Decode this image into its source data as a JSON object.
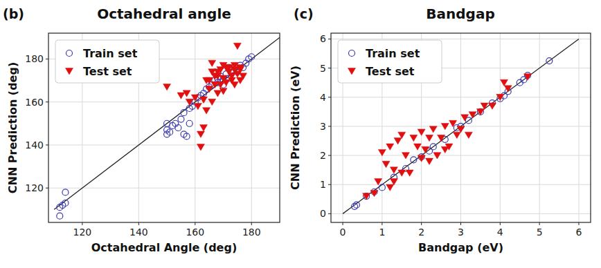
{
  "chart_data": [
    {
      "type": "scatter",
      "title": "Octahedral angle",
      "annotations": [
        "(b)"
      ],
      "x_label": "Octahedral Angle (deg)",
      "y_label": "CNN Prediction (deg)",
      "xlim": [
        108,
        190
      ],
      "ylim": [
        104,
        192
      ],
      "xticks": [
        120,
        140,
        160,
        180
      ],
      "yticks": [
        120,
        140,
        160,
        180
      ],
      "grid": true,
      "legend": "upper left",
      "diagonal": [
        110,
        190
      ],
      "series": [
        {
          "name": "Train set",
          "color": "#3b3bb0",
          "marker": "circle",
          "x": [
            112,
            112,
            113,
            114,
            114,
            150,
            150,
            150,
            151,
            152,
            153,
            154,
            155,
            156,
            156,
            157,
            158,
            158,
            159,
            160,
            161,
            162,
            163,
            164,
            165,
            166,
            167,
            168,
            169,
            170,
            171,
            172,
            173,
            174,
            175,
            176,
            177,
            178,
            179,
            180,
            170,
            168,
            172
          ],
          "values": [
            107,
            111,
            112,
            113,
            118,
            145,
            147,
            150,
            146,
            149,
            150,
            148,
            152,
            145,
            155,
            144,
            150,
            157,
            158,
            160,
            162,
            163,
            164,
            166,
            167,
            168,
            170,
            169,
            172,
            170,
            173,
            171,
            175,
            176,
            174,
            177,
            176,
            178,
            180,
            181,
            168,
            171,
            176
          ]
        },
        {
          "name": "Test set",
          "color": "#e01010",
          "marker": "triangle_down",
          "x": [
            150,
            155,
            157,
            158,
            160,
            161,
            162,
            162,
            163,
            164,
            165,
            166,
            167,
            168,
            168,
            169,
            170,
            170,
            171,
            172,
            172,
            173,
            173,
            174,
            174,
            175,
            175,
            176,
            176,
            177,
            165,
            166,
            167,
            169,
            171,
            168,
            164,
            163,
            170,
            174,
            176,
            166
          ],
          "values": [
            167,
            163,
            164,
            160,
            162,
            158,
            145,
            139,
            148,
            156,
            166,
            174,
            168,
            164,
            172,
            175,
            165,
            171,
            169,
            176,
            174,
            170,
            172,
            175,
            177,
            186,
            173,
            176,
            170,
            172,
            170,
            160,
            172,
            168,
            176,
            174,
            170,
            161,
            177,
            168,
            175,
            178
          ]
        }
      ]
    },
    {
      "type": "scatter",
      "title": "Bandgap",
      "annotations": [
        "(c)"
      ],
      "x_label": "Bandgap (eV)",
      "y_label": "CNN Prediction (eV)",
      "xlim": [
        -0.3,
        6.3
      ],
      "ylim": [
        -0.3,
        6.2
      ],
      "xticks": [
        0,
        1,
        2,
        3,
        4,
        5,
        6
      ],
      "yticks": [
        0,
        1,
        2,
        3,
        4,
        5,
        6
      ],
      "grid": true,
      "legend": "upper left",
      "diagonal": [
        0,
        6
      ],
      "series": [
        {
          "name": "Train set",
          "color": "#3b3bb0",
          "marker": "circle",
          "x": [
            0.3,
            0.35,
            0.6,
            0.8,
            1.0,
            1.3,
            1.6,
            2.0,
            2.3,
            2.6,
            2.9,
            3.2,
            3.5,
            3.8,
            4.0,
            4.1,
            4.2,
            4.5,
            4.6,
            4.7,
            5.25,
            1.8,
            2.2,
            3.0
          ],
          "values": [
            0.25,
            0.3,
            0.6,
            0.75,
            0.9,
            1.25,
            1.55,
            1.95,
            2.3,
            2.55,
            2.95,
            3.2,
            3.5,
            3.8,
            3.95,
            4.05,
            4.2,
            4.5,
            4.6,
            4.75,
            5.25,
            1.85,
            2.15,
            3.0
          ]
        },
        {
          "name": "Test set",
          "color": "#e01010",
          "marker": "triangle_down",
          "x": [
            0.6,
            0.9,
            1.0,
            1.1,
            1.2,
            1.2,
            1.3,
            1.4,
            1.5,
            1.5,
            1.6,
            1.7,
            1.8,
            1.9,
            2.0,
            2.0,
            2.1,
            2.2,
            2.3,
            2.4,
            2.5,
            2.6,
            2.7,
            2.8,
            2.9,
            3.0,
            3.1,
            3.2,
            3.3,
            3.5,
            3.6,
            3.8,
            4.0,
            4.1,
            4.2,
            4.7,
            0.8,
            1.3,
            2.2,
            2.6
          ],
          "values": [
            0.6,
            1.1,
            2.1,
            1.7,
            0.9,
            2.3,
            1.5,
            2.5,
            1.4,
            2.7,
            2.0,
            1.4,
            2.6,
            2.3,
            1.9,
            2.8,
            2.2,
            1.8,
            2.9,
            2.0,
            2.6,
            3.0,
            2.3,
            3.1,
            2.7,
            2.9,
            3.3,
            2.7,
            3.4,
            3.5,
            3.7,
            3.7,
            4.0,
            4.5,
            4.3,
            4.7,
            0.7,
            1.1,
            2.6,
            2.2
          ]
        }
      ]
    }
  ]
}
